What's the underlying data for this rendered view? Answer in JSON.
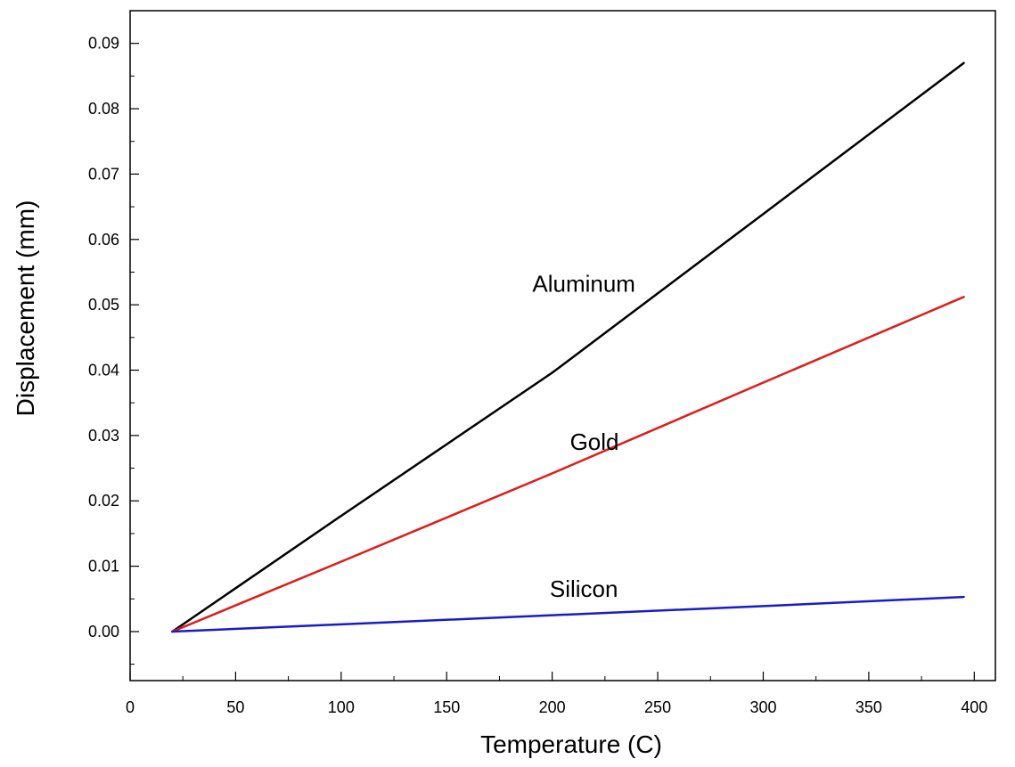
{
  "chart_data": {
    "type": "line",
    "title": "",
    "xlabel": "Temperature (C)",
    "ylabel": "Displacement (mm)",
    "xlim": [
      0,
      410
    ],
    "ylim": [
      -0.0075,
      0.095
    ],
    "grid": false,
    "legend": "none",
    "x_ticks": [
      "0",
      "50",
      "100",
      "150",
      "200",
      "250",
      "300",
      "350",
      "400"
    ],
    "y_ticks": [
      "0.00",
      "0.01",
      "0.02",
      "0.03",
      "0.04",
      "0.05",
      "0.06",
      "0.07",
      "0.08",
      "0.09"
    ],
    "series": [
      {
        "name": "Aluminum",
        "color": "#000000",
        "x": [
          20,
          100,
          200,
          300,
          395
        ],
        "y": [
          0.0,
          0.0177,
          0.0396,
          0.0639,
          0.087
        ]
      },
      {
        "name": "Gold",
        "color": "#e01b1b",
        "x": [
          20,
          100,
          200,
          300,
          395
        ],
        "y": [
          0.0,
          0.0107,
          0.0242,
          0.0381,
          0.0512
        ]
      },
      {
        "name": "Silicon",
        "color": "#1a1acc",
        "x": [
          20,
          100,
          200,
          300,
          395
        ],
        "y": [
          0.0,
          0.0011,
          0.0025,
          0.0039,
          0.0053
        ]
      }
    ]
  }
}
